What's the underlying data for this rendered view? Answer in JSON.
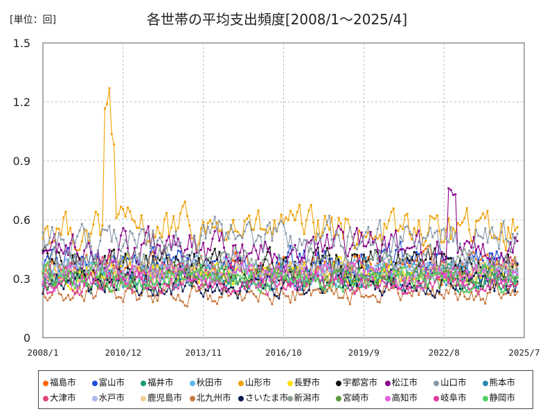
{
  "chart_data": {
    "type": "line",
    "title": "各世帯の平均支出頻度[2008/1～2025/4]",
    "unit_label": "[単位：回]",
    "xlabel": "",
    "ylabel": "",
    "ylim": [
      0,
      1.5
    ],
    "yticks": [
      "0",
      "0.3",
      "0.6",
      "0.9",
      "1.2",
      "1.5"
    ],
    "xticks": [
      "2008/1",
      "2010/12",
      "2013/11",
      "2016/10",
      "2019/9",
      "2022/8",
      "2025/7"
    ],
    "x_start": "2008/1",
    "x_end": "2025/7",
    "data_start": "2008/1",
    "data_end": "2025/4",
    "grid": true,
    "legend_position": "bottom",
    "series": [
      {
        "name": "福島市",
        "color": "#ff6600",
        "level": 0.36,
        "spread": 0.07
      },
      {
        "name": "富山市",
        "color": "#1f4fd8",
        "level": 0.38,
        "spread": 0.08
      },
      {
        "name": "福井市",
        "color": "#1a9a6b",
        "level": 0.3,
        "spread": 0.06
      },
      {
        "name": "秋田市",
        "color": "#5bb8e8",
        "level": 0.34,
        "spread": 0.06
      },
      {
        "name": "山形市",
        "color": "#f0a000",
        "level": 0.55,
        "spread": 0.1
      },
      {
        "name": "長野市",
        "color": "#ffe000",
        "level": 0.33,
        "spread": 0.06
      },
      {
        "name": "宇都宮市",
        "color": "#111111",
        "level": 0.38,
        "spread": 0.08
      },
      {
        "name": "松江市",
        "color": "#8b008b",
        "level": 0.45,
        "spread": 0.09
      },
      {
        "name": "山口市",
        "color": "#8899aa",
        "level": 0.5,
        "spread": 0.09
      },
      {
        "name": "熊本市",
        "color": "#2a8ab0",
        "level": 0.3,
        "spread": 0.06
      },
      {
        "name": "大津市",
        "color": "#e0457b",
        "level": 0.33,
        "spread": 0.06
      },
      {
        "name": "水戸市",
        "color": "#a8b8f0",
        "level": 0.35,
        "spread": 0.06
      },
      {
        "name": "鹿児島市",
        "color": "#f0d090",
        "level": 0.32,
        "spread": 0.06
      },
      {
        "name": "北九州市",
        "color": "#c87840",
        "level": 0.22,
        "spread": 0.05
      },
      {
        "name": "さいたま市",
        "color": "#0a1a50",
        "level": 0.27,
        "spread": 0.06
      },
      {
        "name": "新潟市",
        "color": "#88a090",
        "level": 0.38,
        "spread": 0.07
      },
      {
        "name": "宮崎市",
        "color": "#5a9a3a",
        "level": 0.3,
        "spread": 0.06
      },
      {
        "name": "高知市",
        "color": "#e060e0",
        "level": 0.32,
        "spread": 0.06
      },
      {
        "name": "岐阜市",
        "color": "#e03aa0",
        "level": 0.27,
        "spread": 0.05
      },
      {
        "name": "静岡市",
        "color": "#50d060",
        "level": 0.3,
        "spread": 0.06
      }
    ]
  }
}
